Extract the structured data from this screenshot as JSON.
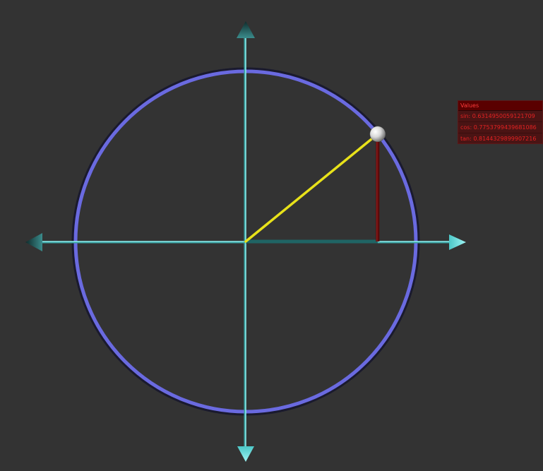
{
  "values_panel": {
    "title": "Values",
    "sin_text": "sin: 0.6314950059121709",
    "cos_text": "cos: 0.7753799439681086",
    "tan_text": "tan: 0.8144329899907216"
  },
  "angle": {
    "sin": 0.6314950059121709,
    "cos": 0.7753799439681086
  },
  "colors": {
    "background": "#333333",
    "circle": "#6a6ae0",
    "axes": "#7fe6e6",
    "radius": "#e8e21a",
    "sine_line": "#5a0a0a",
    "cosine_line": "#1f6464",
    "panel_bg": "#4a1414",
    "panel_text": "#e52222"
  }
}
